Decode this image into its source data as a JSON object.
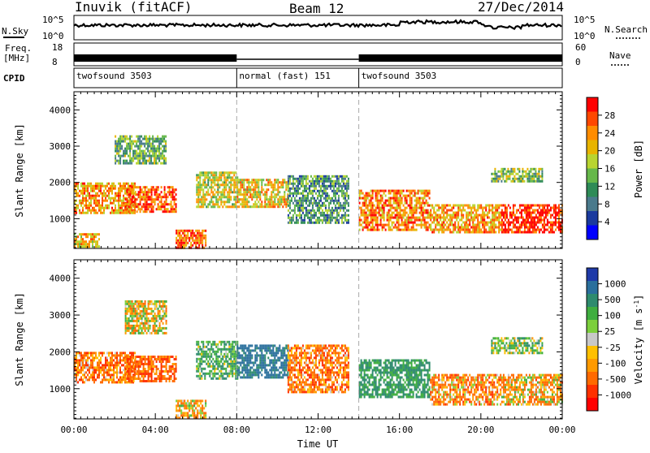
{
  "header": {
    "station": "Inuvik (fitACF)",
    "beam": "Beam 12",
    "date": "27/Dec/2014"
  },
  "strip_labels": {
    "nsky": "N.Sky",
    "freq_line1": "Freq.",
    "freq_line2": "[MHz]",
    "cpid": "CPID",
    "nsearch": "N.Search",
    "nave": "Nave"
  },
  "strip_ticks": {
    "nsky_left": [
      "10^5",
      "10^0"
    ],
    "nsearch_right": [
      "10^5",
      "10^0"
    ],
    "freq_left": [
      "18",
      "8"
    ],
    "nave_right": [
      "60",
      "0"
    ]
  },
  "cpid_segments": [
    {
      "label": "twofsound 3503",
      "start_h": 0,
      "end_h": 8
    },
    {
      "label": "normal (fast) 151",
      "start_h": 8,
      "end_h": 14
    },
    {
      "label": "twofsound 3503",
      "start_h": 14,
      "end_h": 24
    }
  ],
  "x_axis": {
    "label": "Time UT",
    "ticks": [
      "00:00",
      "04:00",
      "08:00",
      "12:00",
      "16:00",
      "20:00",
      "00:00"
    ],
    "range_hours": [
      0,
      24
    ]
  },
  "y_axis": {
    "label": "Slant Range [km]",
    "ticks": [
      "1000",
      "2000",
      "3000",
      "4000"
    ],
    "range_km": [
      180,
      4500
    ]
  },
  "colorbars": {
    "power": {
      "label": "Power [dB]",
      "ticks": [
        "28",
        "24",
        "20",
        "16",
        "12",
        "8",
        "4"
      ],
      "colors": [
        "#ff0000",
        "#ff4800",
        "#ff8c00",
        "#e8b400",
        "#b8d430",
        "#66b84a",
        "#2e8b57",
        "#4a7a8c",
        "#1a3a9e",
        "#0000ff"
      ]
    },
    "velocity": {
      "label": "Velocity [m s^-1]",
      "ticks": [
        "1000",
        "500",
        "100",
        "25",
        "-25",
        "-100",
        "-500",
        "-1000"
      ],
      "colors": [
        "#1f3aa8",
        "#2a6f9c",
        "#2e8b6e",
        "#3fae3f",
        "#7ccf3c",
        "#c8c8c8",
        "#ffc000",
        "#ff9a00",
        "#ff6a00",
        "#ff3000",
        "#ff0000"
      ]
    }
  },
  "chart_data": [
    {
      "type": "heatmap",
      "title": "Power [dB]",
      "xlabel": "Time UT",
      "ylabel": "Slant Range [km]",
      "xlim_hours": [
        0,
        24
      ],
      "ylim_km": [
        180,
        4500
      ],
      "value_range_db": [
        0,
        30
      ],
      "regions": [
        {
          "t_start": 0.0,
          "t_end": 3.0,
          "r_low": 1150,
          "r_high": 2000,
          "value": 22
        },
        {
          "t_start": 2.5,
          "t_end": 5.0,
          "r_low": 1200,
          "r_high": 1900,
          "value": 26
        },
        {
          "t_start": 0.0,
          "t_end": 1.2,
          "r_low": 200,
          "r_high": 600,
          "value": 20
        },
        {
          "t_start": 2.0,
          "t_end": 4.5,
          "r_low": 2500,
          "r_high": 3300,
          "value": 12
        },
        {
          "t_start": 5.0,
          "t_end": 6.5,
          "r_low": 200,
          "r_high": 700,
          "value": 26
        },
        {
          "t_start": 6.0,
          "t_end": 8.0,
          "r_low": 1300,
          "r_high": 2300,
          "value": 18
        },
        {
          "t_start": 8.0,
          "t_end": 10.5,
          "r_low": 1300,
          "r_high": 2100,
          "value": 20
        },
        {
          "t_start": 10.5,
          "t_end": 13.5,
          "r_low": 900,
          "r_high": 2200,
          "value": 10
        },
        {
          "t_start": 14.0,
          "t_end": 17.5,
          "r_low": 700,
          "r_high": 1800,
          "value": 24
        },
        {
          "t_start": 17.5,
          "t_end": 21.0,
          "r_low": 600,
          "r_high": 1400,
          "value": 22
        },
        {
          "t_start": 21.0,
          "t_end": 24.0,
          "r_low": 600,
          "r_high": 1400,
          "value": 29
        },
        {
          "t_start": 20.5,
          "t_end": 23.0,
          "r_low": 2000,
          "r_high": 2400,
          "value": 14
        }
      ]
    },
    {
      "type": "heatmap",
      "title": "Velocity [m s^-1]",
      "xlabel": "Time UT",
      "ylabel": "Slant Range [km]",
      "xlim_hours": [
        0,
        24
      ],
      "ylim_km": [
        180,
        4500
      ],
      "value_range_ms": [
        -1000,
        1000
      ],
      "regions": [
        {
          "t_start": 0.0,
          "t_end": 3.0,
          "r_low": 1150,
          "r_high": 2000,
          "value": -150
        },
        {
          "t_start": 2.5,
          "t_end": 5.0,
          "r_low": 1200,
          "r_high": 1900,
          "value": -200
        },
        {
          "t_start": 2.5,
          "t_end": 4.5,
          "r_low": 2500,
          "r_high": 3400,
          "value": 20
        },
        {
          "t_start": 5.0,
          "t_end": 6.5,
          "r_low": 200,
          "r_high": 700,
          "value": -50
        },
        {
          "t_start": 6.0,
          "t_end": 8.0,
          "r_low": 1300,
          "r_high": 2300,
          "value": 200
        },
        {
          "t_start": 8.0,
          "t_end": 10.5,
          "r_low": 1300,
          "r_high": 2200,
          "value": 600
        },
        {
          "t_start": 10.5,
          "t_end": 13.5,
          "r_low": 900,
          "r_high": 2200,
          "value": -150
        },
        {
          "t_start": 14.0,
          "t_end": 17.5,
          "r_low": 800,
          "r_high": 1800,
          "value": 300
        },
        {
          "t_start": 17.5,
          "t_end": 21.0,
          "r_low": 600,
          "r_high": 1400,
          "value": -120
        },
        {
          "t_start": 21.0,
          "t_end": 24.0,
          "r_low": 600,
          "r_high": 1400,
          "value": -60
        },
        {
          "t_start": 20.5,
          "t_end": 23.0,
          "r_low": 2000,
          "r_high": 2400,
          "value": 150
        }
      ]
    }
  ]
}
